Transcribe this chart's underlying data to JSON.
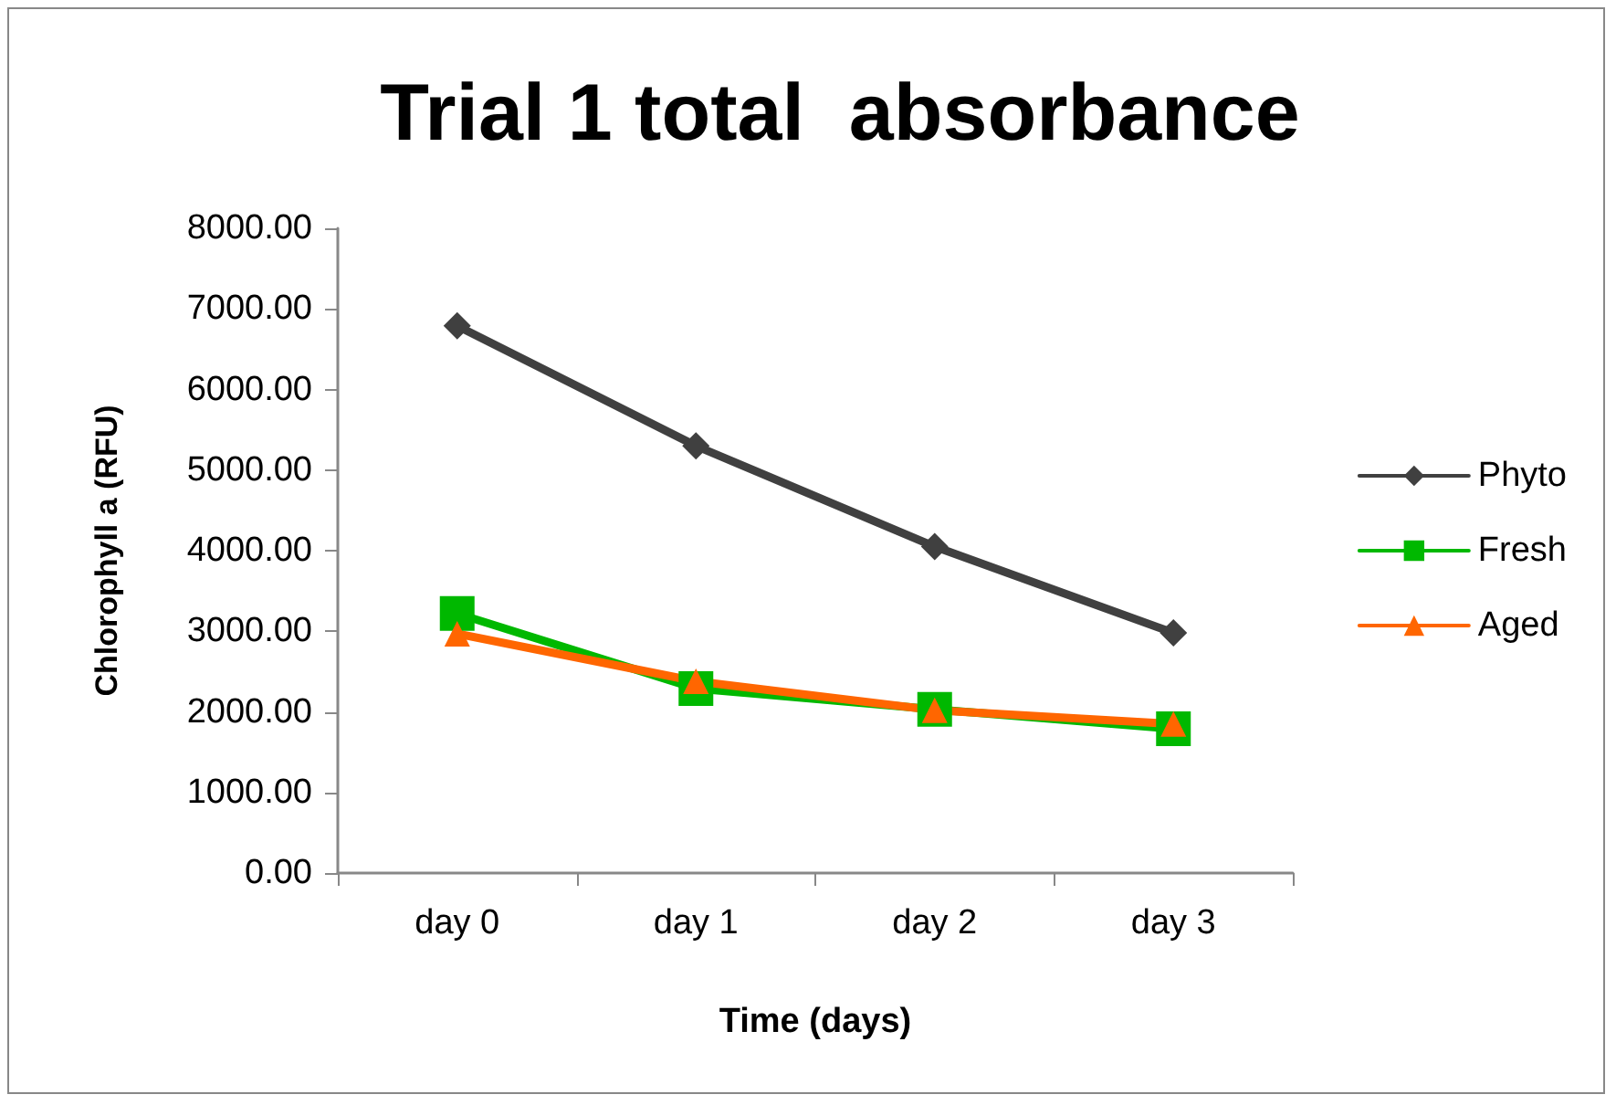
{
  "chart_data": {
    "type": "line",
    "title": "Trial 1 total  absorbance",
    "xlabel": "Time (days)",
    "ylabel": "Chlorophyll a (RFU)",
    "categories": [
      "day 0",
      "day 1",
      "day 2",
      "day 3"
    ],
    "series": [
      {
        "name": "Phyto",
        "color": "#404040",
        "marker": "diamond",
        "values": [
          6790,
          5300,
          4050,
          2980
        ]
      },
      {
        "name": "Fresh",
        "color": "#00b800",
        "marker": "square",
        "values": [
          3220,
          2290,
          2030,
          1790
        ]
      },
      {
        "name": "Aged",
        "color": "#ff6600",
        "marker": "triangle",
        "values": [
          2970,
          2380,
          2020,
          1850
        ]
      }
    ],
    "ylim": [
      0,
      8000
    ],
    "yticks": [
      {
        "value": 0,
        "label": "0.00"
      },
      {
        "value": 1000,
        "label": "1000.00"
      },
      {
        "value": 2000,
        "label": "2000.00"
      },
      {
        "value": 3000,
        "label": "3000.00"
      },
      {
        "value": 4000,
        "label": "4000.00"
      },
      {
        "value": 5000,
        "label": "5000.00"
      },
      {
        "value": 6000,
        "label": "6000.00"
      },
      {
        "value": 7000,
        "label": "7000.00"
      },
      {
        "value": 8000,
        "label": "8000.00"
      }
    ],
    "grid": false,
    "legend": "right",
    "line_style": "solid"
  }
}
